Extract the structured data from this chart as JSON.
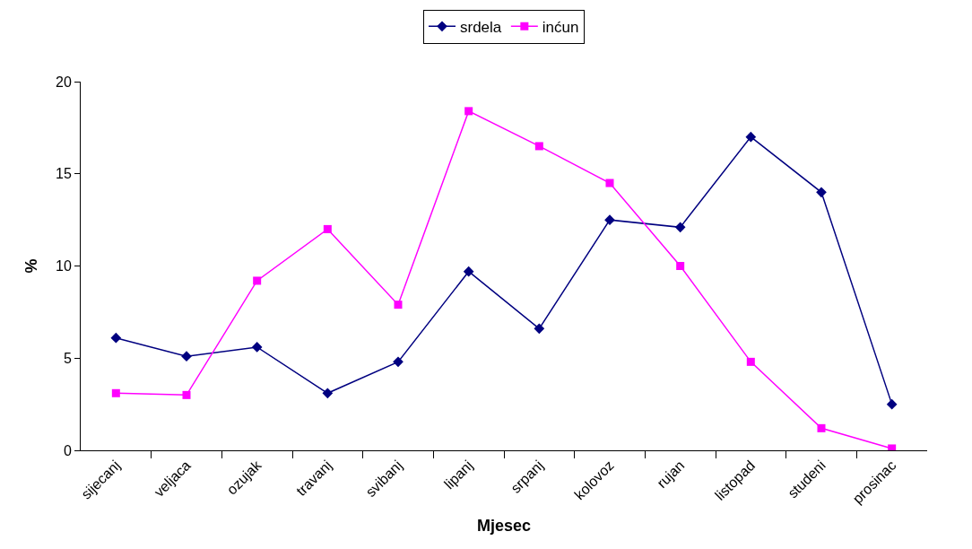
{
  "chart_data": {
    "type": "line",
    "xlabel": "Mjesec",
    "ylabel": "%",
    "categories": [
      "sijecanj",
      "veljaca",
      "ozujak",
      "travanj",
      "svibanj",
      "lipanj",
      "srpanj",
      "kolovoz",
      "rujan",
      "listopad",
      "studeni",
      "prosinac"
    ],
    "series": [
      {
        "name": "srdela",
        "color": "#000080",
        "marker": "diamond",
        "values": [
          6.1,
          5.1,
          5.6,
          3.1,
          4.8,
          9.7,
          6.6,
          12.5,
          12.1,
          17.0,
          14.0,
          2.5
        ]
      },
      {
        "name": "inćun",
        "color": "#ff00ff",
        "marker": "square",
        "values": [
          3.1,
          3.0,
          9.2,
          12.0,
          7.9,
          18.4,
          16.5,
          14.5,
          10.0,
          4.8,
          1.2,
          0.1
        ]
      }
    ],
    "ylim": [
      0,
      20
    ],
    "yticks": [
      0,
      5,
      10,
      15,
      20
    ],
    "legend": "top",
    "line_style": "solid"
  }
}
